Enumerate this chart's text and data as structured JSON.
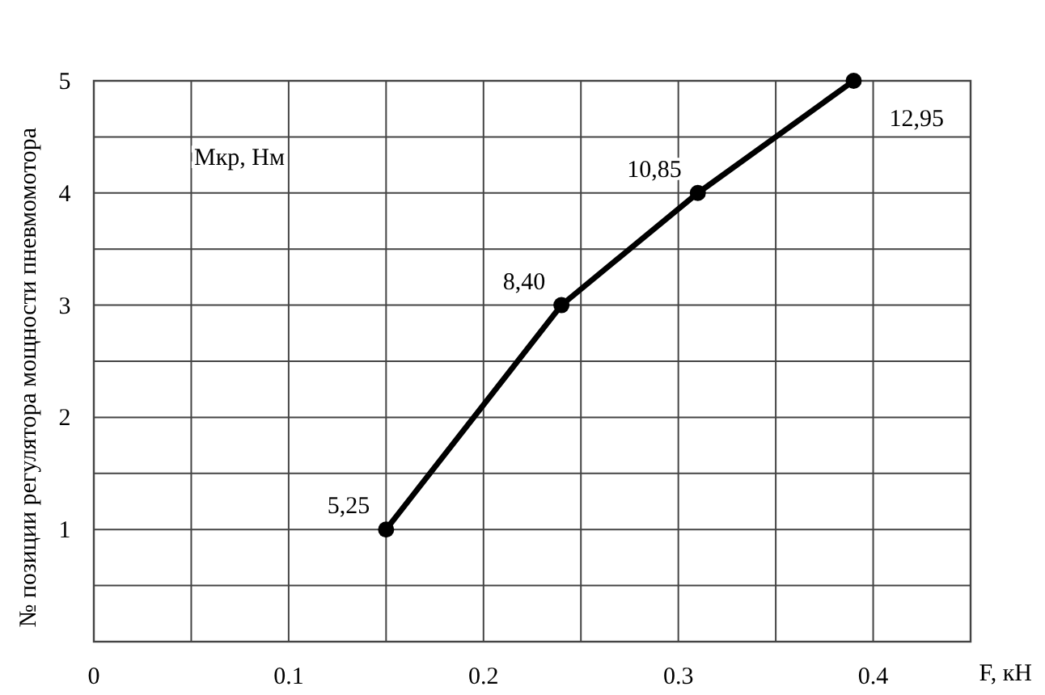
{
  "chart_data": {
    "type": "line",
    "xlabel": "F, кН",
    "ylabel": "№ позиции регулятора мощности пневмомотора",
    "x": [
      0.15,
      0.24,
      0.31,
      0.39
    ],
    "series": [
      {
        "color": "#000000",
        "values": [
          1,
          3,
          4,
          5
        ]
      }
    ],
    "xlim": [
      0,
      0.45
    ],
    "xticks": [
      0,
      {
        "value": 0.05,
        "label": null
      },
      0.1,
      {
        "value": 0.15,
        "label": null
      },
      0.2,
      {
        "value": 0.25,
        "label": null
      },
      0.3,
      {
        "value": 0.35,
        "label": null
      },
      0.4
    ],
    "ylim": [
      0,
      5
    ],
    "yticks": [
      {
        "value": 0,
        "label": null
      },
      {
        "value": 0.5,
        "label": null
      },
      1,
      {
        "value": 1.5,
        "label": null
      },
      2,
      {
        "value": 2.5,
        "label": null
      },
      3,
      {
        "value": 3.5,
        "label": null
      },
      4,
      {
        "value": 4.5,
        "label": null
      },
      5
    ],
    "annotations": [
      "Мкр, Нм",
      {
        "text": "5,25",
        "x": 0.15,
        "y": 1
      },
      {
        "text": "8,40",
        "x": 0.24,
        "y": 3
      },
      {
        "text": "10,85",
        "x": 0.31,
        "y": 4
      },
      {
        "text": "12,95",
        "x": 0.39,
        "y": 5
      }
    ],
    "grid": true,
    "marker": "circle",
    "line_style": "solid"
  }
}
